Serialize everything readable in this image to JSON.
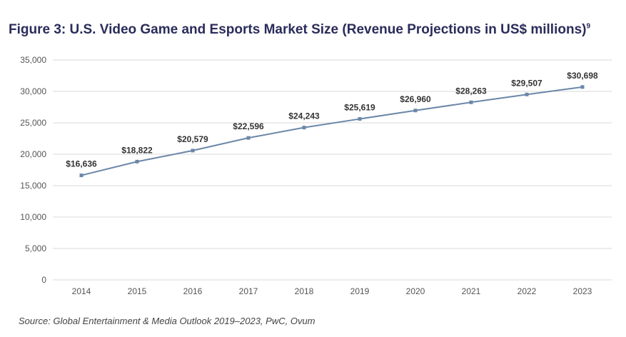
{
  "chart_data": {
    "type": "line",
    "title": "Figure 3: U.S. Video Game and Esports Market Size (Revenue Projections in US$ millions)",
    "title_footnote": "9",
    "categories": [
      "2014",
      "2015",
      "2016",
      "2017",
      "2018",
      "2019",
      "2020",
      "2021",
      "2022",
      "2023"
    ],
    "values": [
      16636,
      18822,
      20579,
      22596,
      24243,
      25619,
      26960,
      28263,
      29507,
      30698
    ],
    "data_labels": [
      "$16,636",
      "$18,822",
      "$20,579",
      "$22,596",
      "$24,243",
      "$25,619",
      "$26,960",
      "$28,263",
      "$29,507",
      "$30,698"
    ],
    "ylim": [
      0,
      35000
    ],
    "yticks": [
      0,
      5000,
      10000,
      15000,
      20000,
      25000,
      30000,
      35000
    ],
    "ytick_labels": [
      "0",
      "5,000",
      "10,000",
      "15,000",
      "20,000",
      "25,000",
      "30,000",
      "35,000"
    ],
    "grid": true,
    "line_color": "#6b87a8",
    "title_color": "#2a2c5a",
    "source": "Source: Global Entertainment & Media Outlook 2019–2023, PwC, Ovum"
  }
}
